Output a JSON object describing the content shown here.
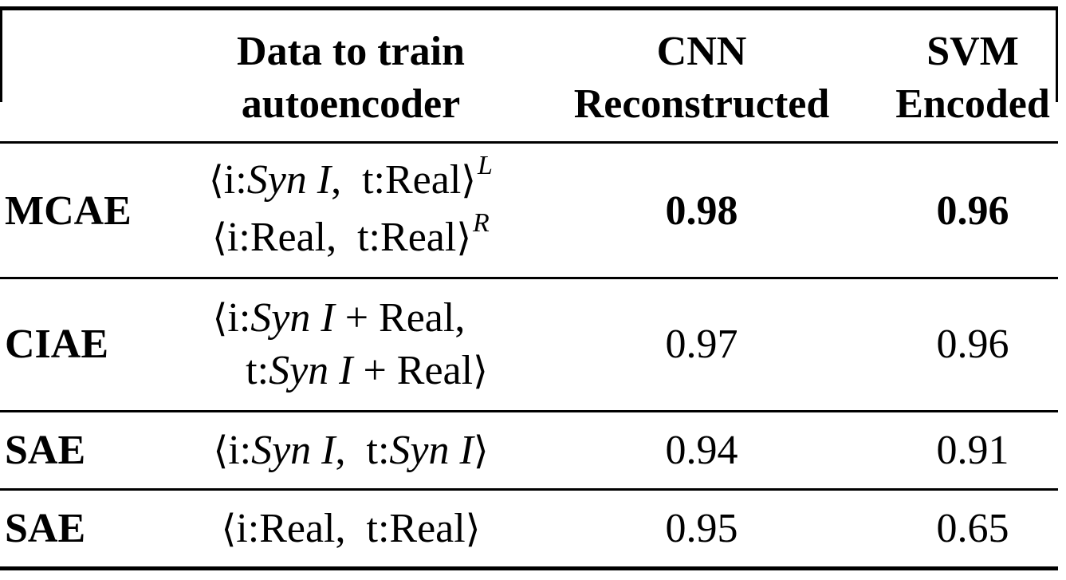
{
  "table": {
    "header": {
      "col_row": "",
      "col_data_line1": "Data to train",
      "col_data_line2": "autoencoder",
      "col_cnn_line1": "CNN",
      "col_cnn_line2": "Reconstructed",
      "col_svm_line1": "SVM",
      "col_svm_line2": "Encoded"
    },
    "rows": [
      {
        "model": "MCAE",
        "data_lines": [
          {
            "i_label": "i:",
            "i_value": "Syn I",
            "t_label": "t:",
            "t_value": "Real",
            "sup": "L"
          },
          {
            "i_label": "i:",
            "i_value": "Real",
            "t_label": "t:",
            "t_value": "Real",
            "sup": "R"
          }
        ],
        "cnn": "0.98",
        "svm": "0.96"
      },
      {
        "model": "CIAE",
        "data_line1_i": "i:",
        "data_line1_syn": "Syn I",
        "data_line1_rest": " + Real,",
        "data_line2_t": "t:",
        "data_line2_syn": "Syn I",
        "data_line2_rest": " + Real",
        "cnn": "0.97",
        "svm": "0.96"
      },
      {
        "model": "SAE",
        "i_label": "i:",
        "i_value": "Syn I",
        "t_label": "t:",
        "t_value": "Syn I",
        "cnn": "0.94",
        "svm": "0.91"
      },
      {
        "model": "SAE",
        "i_label": "i:",
        "i_value": "Real",
        "t_label": "t:",
        "t_value": "Real",
        "cnn": "0.95",
        "svm": "0.65"
      }
    ]
  }
}
